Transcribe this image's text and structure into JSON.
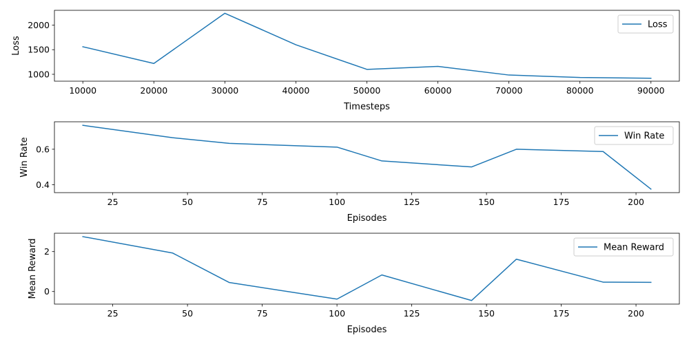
{
  "colors": {
    "line": "#1f77b4",
    "axis": "#000000",
    "background": "#ffffff",
    "legend_border": "#cccccc"
  },
  "chart_data": [
    {
      "type": "line",
      "xlabel": "Timesteps",
      "ylabel": "Loss",
      "xlim": [
        6000,
        94000
      ],
      "ylim": [
        860,
        2300
      ],
      "xticks": [
        10000,
        20000,
        30000,
        40000,
        50000,
        60000,
        70000,
        80000,
        90000
      ],
      "yticks": [
        1000,
        1500,
        2000
      ],
      "grid": false,
      "legend_position": "upper-right",
      "series": [
        {
          "name": "Loss",
          "x": [
            10000,
            20000,
            30000,
            40000,
            50000,
            60000,
            70000,
            80000,
            90000
          ],
          "y": [
            1560,
            1220,
            2240,
            1600,
            1100,
            1160,
            985,
            935,
            920
          ]
        }
      ]
    },
    {
      "type": "line",
      "xlabel": "Episodes",
      "ylabel": "Win Rate",
      "xlim": [
        5.5,
        214.5
      ],
      "ylim": [
        0.355,
        0.755
      ],
      "xticks": [
        25,
        50,
        75,
        100,
        125,
        150,
        175,
        200
      ],
      "yticks": [
        0.4,
        0.6
      ],
      "grid": false,
      "legend_position": "upper-right",
      "series": [
        {
          "name": "Win Rate",
          "x": [
            15,
            45,
            64,
            100,
            115,
            145,
            160,
            189,
            205
          ],
          "y": [
            0.735,
            0.665,
            0.633,
            0.612,
            0.534,
            0.5,
            0.6,
            0.587,
            0.375
          ]
        }
      ]
    },
    {
      "type": "line",
      "xlabel": "Episodes",
      "ylabel": "Mean Reward",
      "xlim": [
        5.5,
        214.5
      ],
      "ylim": [
        -0.63,
        2.92
      ],
      "xticks": [
        25,
        50,
        75,
        100,
        125,
        150,
        175,
        200
      ],
      "yticks": [
        0,
        2
      ],
      "grid": false,
      "legend_position": "upper-right",
      "series": [
        {
          "name": "Mean Reward",
          "x": [
            15,
            45,
            64,
            100,
            115,
            145,
            160,
            189,
            205
          ],
          "y": [
            2.75,
            1.93,
            0.45,
            -0.38,
            0.83,
            -0.45,
            1.62,
            0.47,
            0.46
          ]
        }
      ]
    }
  ]
}
